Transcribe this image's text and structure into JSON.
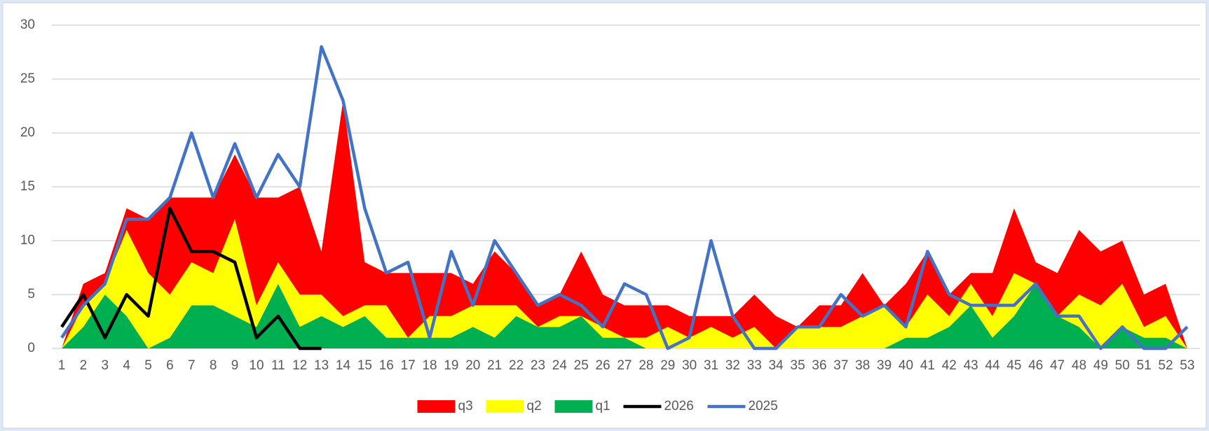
{
  "chart_data": {
    "type": "area",
    "categories": [
      "1",
      "2",
      "3",
      "4",
      "5",
      "6",
      "7",
      "8",
      "9",
      "10",
      "11",
      "12",
      "13",
      "14",
      "15",
      "16",
      "17",
      "18",
      "19",
      "20",
      "21",
      "22",
      "23",
      "24",
      "25",
      "26",
      "27",
      "28",
      "29",
      "30",
      "31",
      "32",
      "33",
      "34",
      "35",
      "36",
      "37",
      "38",
      "39",
      "40",
      "41",
      "42",
      "43",
      "44",
      "45",
      "46",
      "47",
      "48",
      "49",
      "50",
      "51",
      "52",
      "53"
    ],
    "series": [
      {
        "name": "q3",
        "type": "area",
        "color": "#ff0000",
        "values": [
          0,
          2,
          1,
          2,
          5,
          9,
          6,
          7,
          6,
          10,
          6,
          10,
          4,
          20,
          4,
          3,
          6,
          4,
          4,
          2,
          5,
          3,
          2,
          2,
          6,
          3,
          3,
          3,
          2,
          2,
          1,
          2,
          3,
          3,
          0,
          2,
          2,
          4,
          0,
          4,
          4,
          2,
          1,
          4,
          6,
          2,
          4,
          6,
          5,
          4,
          3,
          3,
          0
        ]
      },
      {
        "name": "q2",
        "type": "area",
        "color": "#ffff00",
        "values": [
          0,
          2,
          1,
          8,
          7,
          4,
          4,
          3,
          9,
          2,
          2,
          3,
          2,
          1,
          1,
          3,
          0,
          2,
          2,
          2,
          3,
          1,
          0,
          1,
          0,
          1,
          0,
          1,
          2,
          1,
          2,
          1,
          2,
          0,
          2,
          2,
          2,
          3,
          4,
          1,
          4,
          1,
          2,
          2,
          4,
          0,
          0,
          3,
          4,
          4,
          1,
          2,
          0
        ]
      },
      {
        "name": "q1",
        "type": "area",
        "color": "#00b050",
        "values": [
          0,
          2,
          5,
          3,
          0,
          1,
          4,
          4,
          3,
          2,
          6,
          2,
          3,
          2,
          3,
          1,
          1,
          1,
          1,
          2,
          1,
          3,
          2,
          2,
          3,
          1,
          1,
          0,
          0,
          0,
          0,
          0,
          0,
          0,
          0,
          0,
          0,
          0,
          0,
          1,
          1,
          2,
          4,
          1,
          3,
          6,
          3,
          2,
          0,
          2,
          1,
          1,
          0
        ]
      },
      {
        "name": "2026",
        "type": "line",
        "color": "#000000",
        "values": [
          2,
          5,
          1,
          5,
          3,
          13,
          9,
          9,
          8,
          1,
          3,
          0,
          0,
          null,
          null,
          null,
          null,
          null,
          null,
          null,
          null,
          null,
          null,
          null,
          null,
          null,
          null,
          null,
          null,
          null,
          null,
          null,
          null,
          null,
          null,
          null,
          null,
          null,
          null,
          null,
          null,
          null,
          null,
          null,
          null,
          null,
          null,
          null,
          null,
          null,
          null,
          null,
          null
        ]
      },
      {
        "name": "2025",
        "type": "line",
        "color": "#4472c4",
        "values": [
          1,
          4,
          6,
          12,
          12,
          14,
          20,
          14,
          19,
          14,
          18,
          15,
          28,
          23,
          13,
          7,
          8,
          1,
          9,
          4,
          10,
          7,
          4,
          5,
          4,
          2,
          6,
          5,
          0,
          1,
          10,
          3,
          0,
          0,
          2,
          2,
          5,
          3,
          4,
          2,
          9,
          5,
          4,
          4,
          4,
          6,
          3,
          3,
          0,
          2,
          0,
          0,
          2
        ]
      }
    ],
    "stacked": true,
    "ylim": [
      0,
      30
    ],
    "yticks": [
      0,
      5,
      10,
      15,
      20,
      25,
      30
    ],
    "grid": true,
    "legend": "bottom"
  }
}
